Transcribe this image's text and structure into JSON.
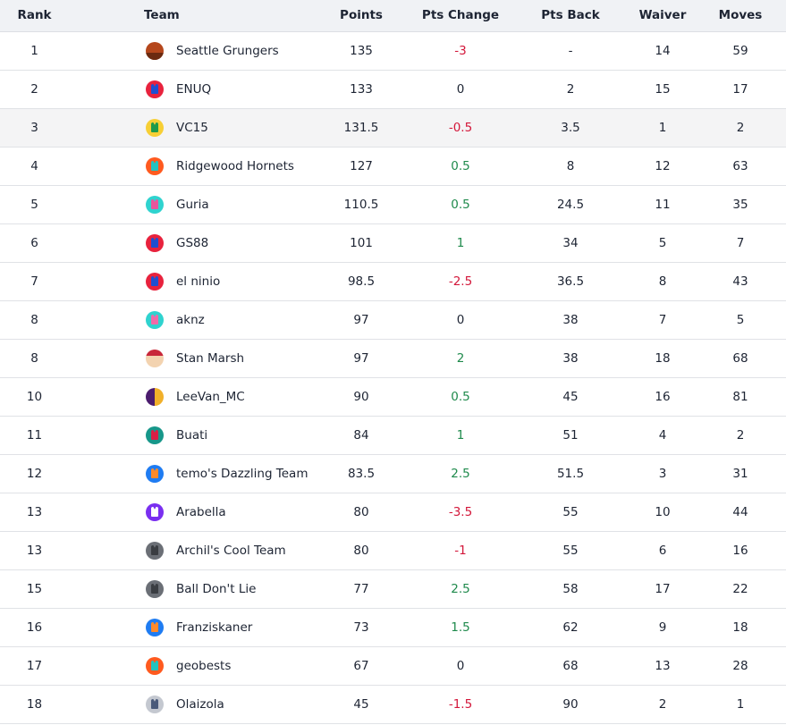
{
  "headers": {
    "rank": "Rank",
    "team": "Team",
    "points": "Points",
    "pts_change": "Pts Change",
    "pts_back": "Pts Back",
    "waiver": "Waiver",
    "moves": "Moves"
  },
  "colors": {
    "negative": "#d3173a",
    "positive": "#1f8a4c",
    "header_bg": "#f0f2f5",
    "highlight_row": "#f4f4f5"
  },
  "rows": [
    {
      "rank": "1",
      "team": "Seattle Grungers",
      "logo": {
        "type": "basketball-photo",
        "bg": "#b5471c",
        "fg": "#6b2a10"
      },
      "points": "135",
      "pts_change": "-3",
      "pts_back": "-",
      "waiver": "14",
      "moves": "59"
    },
    {
      "rank": "2",
      "team": "ENUQ",
      "logo": {
        "type": "jersey",
        "bg": "#e8223d",
        "fg": "#1f4fd1"
      },
      "points": "133",
      "pts_change": "0",
      "pts_back": "2",
      "waiver": "15",
      "moves": "17"
    },
    {
      "rank": "3",
      "team": "VC15",
      "logo": {
        "type": "jersey",
        "bg": "#f7cf35",
        "fg": "#1e9a4b"
      },
      "points": "131.5",
      "pts_change": "-0.5",
      "pts_back": "3.5",
      "waiver": "1",
      "moves": "2",
      "highlighted": true
    },
    {
      "rank": "4",
      "team": "Ridgewood Hornets",
      "logo": {
        "type": "jersey",
        "bg": "#ff5a1f",
        "fg": "#22c3c0"
      },
      "points": "127",
      "pts_change": "0.5",
      "pts_back": "8",
      "waiver": "12",
      "moves": "63"
    },
    {
      "rank": "5",
      "team": "Guria",
      "logo": {
        "type": "jersey",
        "bg": "#2fd3cf",
        "fg": "#e8559c"
      },
      "points": "110.5",
      "pts_change": "0.5",
      "pts_back": "24.5",
      "waiver": "11",
      "moves": "35"
    },
    {
      "rank": "6",
      "team": "GS88",
      "logo": {
        "type": "jersey",
        "bg": "#e8223d",
        "fg": "#1f4fd1"
      },
      "points": "101",
      "pts_change": "1",
      "pts_back": "34",
      "waiver": "5",
      "moves": "7"
    },
    {
      "rank": "7",
      "team": "el ninio",
      "logo": {
        "type": "jersey",
        "bg": "#e8223d",
        "fg": "#1f4fd1"
      },
      "points": "98.5",
      "pts_change": "-2.5",
      "pts_back": "36.5",
      "waiver": "8",
      "moves": "43"
    },
    {
      "rank": "8",
      "team": "aknz",
      "logo": {
        "type": "jersey",
        "bg": "#2fd3cf",
        "fg": "#f06aa8"
      },
      "points": "97",
      "pts_change": "0",
      "pts_back": "38",
      "waiver": "7",
      "moves": "5"
    },
    {
      "rank": "8",
      "team": "Stan Marsh",
      "logo": {
        "type": "cartoon-face",
        "bg": "#f3d3b0",
        "fg": "#c8273a"
      },
      "points": "97",
      "pts_change": "2",
      "pts_back": "38",
      "waiver": "18",
      "moves": "68"
    },
    {
      "rank": "10",
      "team": "LeeVan_MC",
      "logo": {
        "type": "split",
        "bg": "#4b1c6e",
        "fg": "#f1b02a"
      },
      "points": "90",
      "pts_change": "0.5",
      "pts_back": "45",
      "waiver": "16",
      "moves": "81"
    },
    {
      "rank": "11",
      "team": "Buati",
      "logo": {
        "type": "jersey",
        "bg": "#17978a",
        "fg": "#d91f45"
      },
      "points": "84",
      "pts_change": "1",
      "pts_back": "51",
      "waiver": "4",
      "moves": "2"
    },
    {
      "rank": "12",
      "team": "temo's Dazzling Team",
      "logo": {
        "type": "jersey",
        "bg": "#1f7cf2",
        "fg": "#ff8a2a"
      },
      "points": "83.5",
      "pts_change": "2.5",
      "pts_back": "51.5",
      "waiver": "3",
      "moves": "31"
    },
    {
      "rank": "13",
      "team": "Arabella",
      "logo": {
        "type": "jersey",
        "bg": "#7a2ff0",
        "fg": "#ffffff"
      },
      "points": "80",
      "pts_change": "-3.5",
      "pts_back": "55",
      "waiver": "10",
      "moves": "44"
    },
    {
      "rank": "13",
      "team": "Archil's Cool Team",
      "logo": {
        "type": "jersey",
        "bg": "#6b6f76",
        "fg": "#3a3d42"
      },
      "points": "80",
      "pts_change": "-1",
      "pts_back": "55",
      "waiver": "6",
      "moves": "16"
    },
    {
      "rank": "15",
      "team": "Ball Don't Lie",
      "logo": {
        "type": "jersey",
        "bg": "#6b6f76",
        "fg": "#3a3d42"
      },
      "points": "77",
      "pts_change": "2.5",
      "pts_back": "58",
      "waiver": "17",
      "moves": "22"
    },
    {
      "rank": "16",
      "team": "Franziskaner",
      "logo": {
        "type": "jersey",
        "bg": "#1f7cf2",
        "fg": "#ff8a2a"
      },
      "points": "73",
      "pts_change": "1.5",
      "pts_back": "62",
      "waiver": "9",
      "moves": "18"
    },
    {
      "rank": "17",
      "team": "geobests",
      "logo": {
        "type": "jersey",
        "bg": "#ff5a1f",
        "fg": "#22c3c0"
      },
      "points": "67",
      "pts_change": "0",
      "pts_back": "68",
      "waiver": "13",
      "moves": "28"
    },
    {
      "rank": "18",
      "team": "Olaizola",
      "logo": {
        "type": "jersey",
        "bg": "#c4c8d0",
        "fg": "#4a5a7a"
      },
      "points": "45",
      "pts_change": "-1.5",
      "pts_back": "90",
      "waiver": "2",
      "moves": "1"
    }
  ]
}
